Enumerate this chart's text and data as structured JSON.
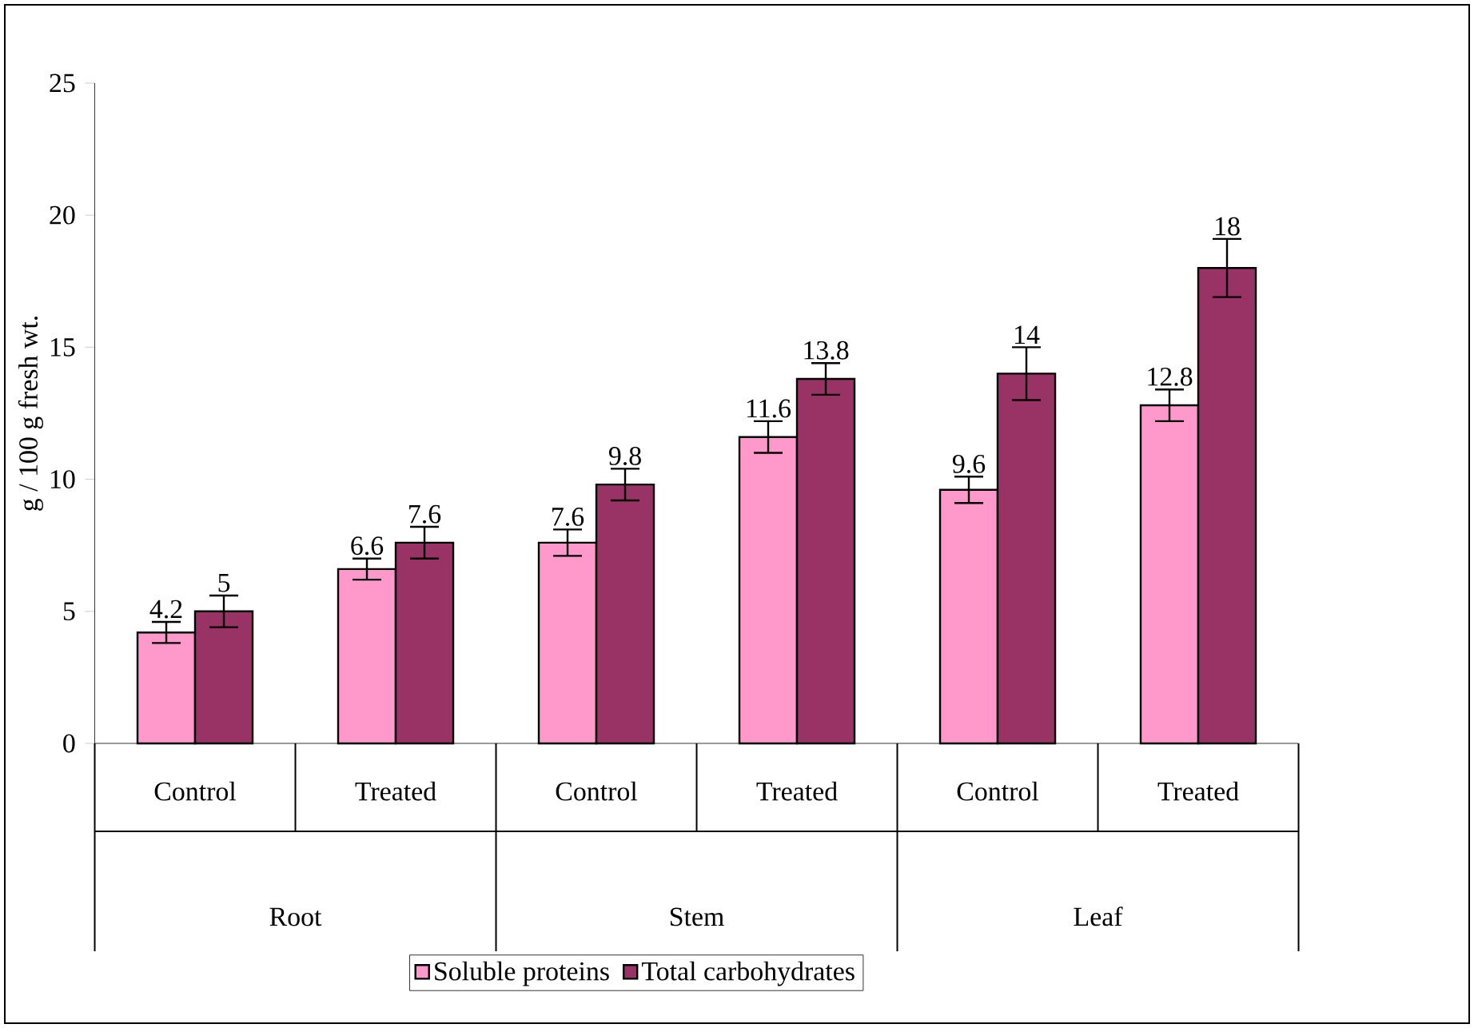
{
  "chart_data": {
    "type": "bar",
    "ylabel": "g / 100 g fresh wt.",
    "categories": [
      "Control",
      "Treated",
      "Control",
      "Treated",
      "Control",
      "Treated"
    ],
    "annotations": [
      "Root",
      "Stem",
      "Leaf"
    ],
    "series": [
      {
        "name": "Soluble proteins",
        "color": "#ff99cc",
        "values": [
          4.2,
          6.6,
          7.6,
          11.6,
          9.6,
          12.8
        ],
        "errors": [
          0.4,
          0.4,
          0.5,
          0.6,
          0.5,
          0.6
        ]
      },
      {
        "name": "Total carbohydrates",
        "color": "#993366",
        "values": [
          5,
          7.6,
          9.8,
          13.8,
          14,
          18
        ],
        "errors": [
          0.6,
          0.6,
          0.6,
          0.6,
          1.0,
          1.1
        ]
      }
    ],
    "ylim": [
      0,
      25
    ],
    "yticks": [
      0,
      5,
      10,
      15,
      20,
      25
    ],
    "data_labels": true,
    "legend": "bottom",
    "grid": false
  }
}
